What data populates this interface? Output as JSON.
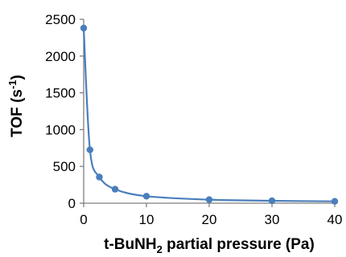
{
  "chart_data": {
    "type": "scatter",
    "x": [
      0,
      1,
      2.5,
      5,
      10,
      20,
      30,
      40
    ],
    "y": [
      2380,
      725,
      355,
      190,
      95,
      48,
      33,
      25
    ],
    "xlabel": {
      "prefix": "t-BuNH",
      "subscript": "2",
      "suffix": " partial pressure (Pa)"
    },
    "ylabel": {
      "prefix": "TOF (s",
      "superscript": "-1",
      "suffix": ")"
    },
    "xlim": [
      0,
      40
    ],
    "ylim": [
      0,
      2500
    ],
    "xticks": [
      0,
      10,
      20,
      30,
      40
    ],
    "yticks": [
      0,
      500,
      1000,
      1500,
      2000,
      2500
    ],
    "grid": false,
    "fit_curve": true,
    "colors": {
      "series": "#4a7ebb",
      "axis": "#7f7f7f",
      "text": "#000000"
    }
  }
}
